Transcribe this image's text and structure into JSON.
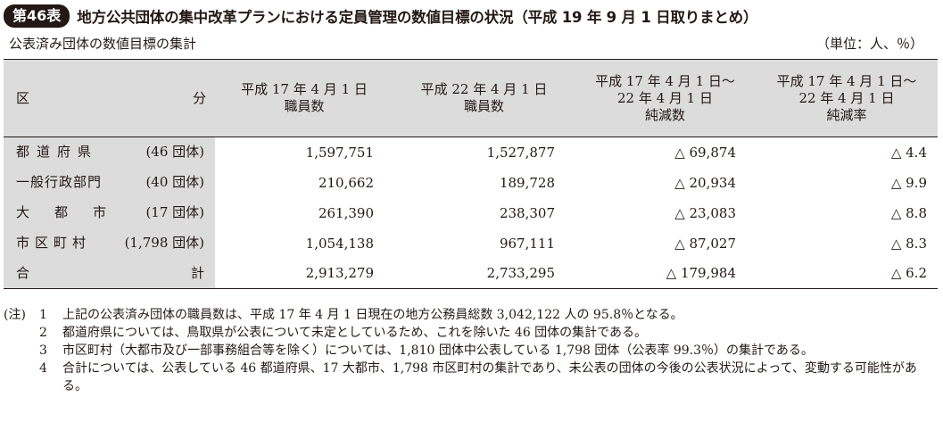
{
  "header": {
    "badge": "第46表",
    "title": "地方公共団体の集中改革プランにおける定員管理の数値目標の状況（平成 19 年 9 月 1 日取りまとめ）",
    "subtitle_left": "公表済み団体の数値目標の集計",
    "subtitle_right": "（単位：人、％）"
  },
  "table": {
    "columns": [
      {
        "label": [
          "区",
          "分"
        ]
      },
      {
        "label": [
          "平成 17 年 4 月 1 日",
          "職員数"
        ]
      },
      {
        "label": [
          "平成 22 年 4 月 1 日",
          "職員数"
        ]
      },
      {
        "label": [
          "平成 17 年 4 月 1 日〜",
          "22 年 4 月 1 日",
          "純減数"
        ]
      },
      {
        "label": [
          "平成 17 年 4 月 1 日〜",
          "22 年 4 月 1 日",
          "純減率"
        ]
      }
    ],
    "rows": [
      {
        "name": "都道府県",
        "count": "(46 団体)",
        "v2005": "1,597,751",
        "v2010": "1,527,877",
        "net": "△ 69,874",
        "rate": "△ 4.4"
      },
      {
        "name": "一般行政部門",
        "count": "(40 団体)",
        "v2005": "210,662",
        "v2010": "189,728",
        "net": "△ 20,934",
        "rate": "△ 9.9"
      },
      {
        "name": "大都市",
        "count": "(17 団体)",
        "v2005": "261,390",
        "v2010": "238,307",
        "net": "△ 23,083",
        "rate": "△ 8.8"
      },
      {
        "name": "市区町村",
        "count": "(1,798 団体)",
        "v2005": "1,054,138",
        "v2010": "967,111",
        "net": "△ 87,027",
        "rate": "△ 8.3"
      },
      {
        "name": "合計",
        "count": "",
        "v2005": "2,913,279",
        "v2010": "2,733,295",
        "net": "△ 179,984",
        "rate": "△ 6.2"
      }
    ]
  },
  "notes": {
    "prefix": "(注)",
    "items": [
      {
        "num": "1",
        "text": "上記の公表済み団体の職員数は、平成 17 年 4 月 1 日現在の地方公務員総数 3,042,122 人の 95.8％となる。"
      },
      {
        "num": "2",
        "text": "都道府県については、鳥取県が公表について未定としているため、これを除いた 46 団体の集計である。"
      },
      {
        "num": "3",
        "text": "市区町村（大都市及び一部事務組合等を除く）については、1,810 団体中公表している 1,798 団体（公表率 99.3％）の集計である。"
      },
      {
        "num": "4",
        "text": "合計については、公表している 46 都道府県、17 大都市、1,798 市区町村の集計であり、未公表の団体の今後の公表状況によって、変動する可能性がある。"
      }
    ]
  }
}
